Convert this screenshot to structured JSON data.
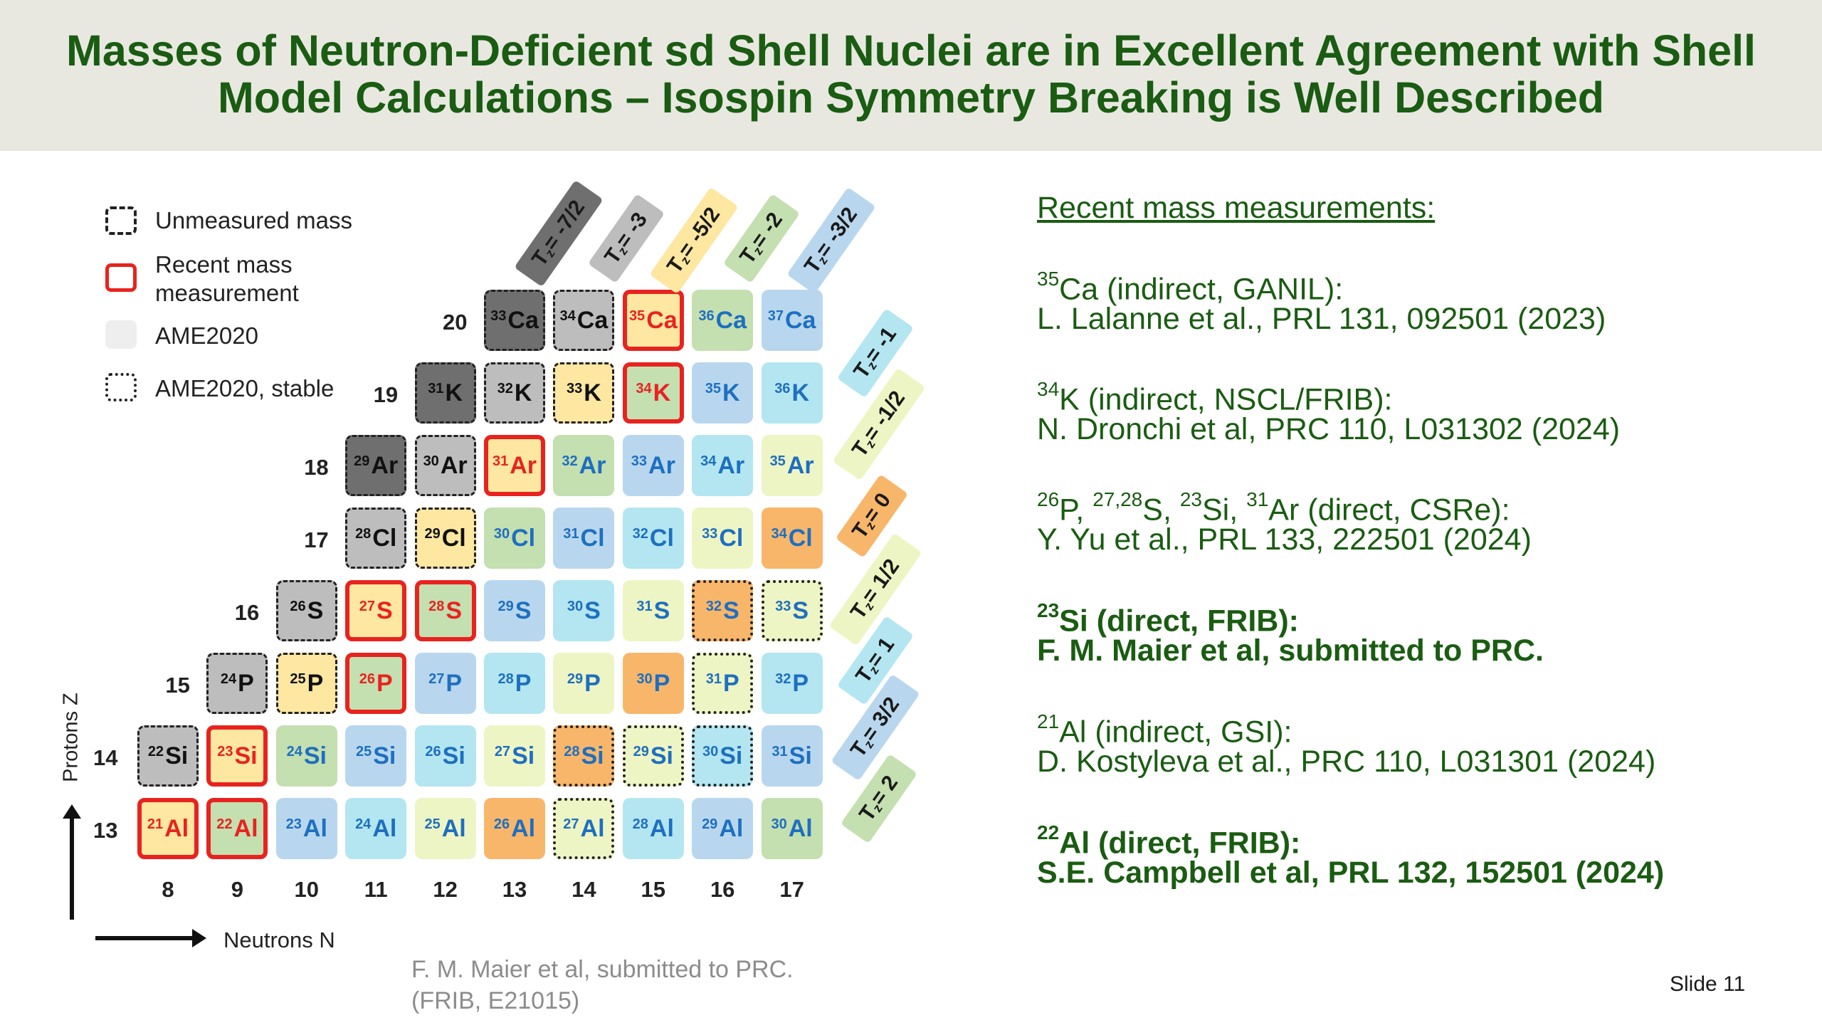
{
  "title_lines": [
    "Masses of Neutron-Deficient sd Shell Nuclei are in Excellent Agreement with Shell",
    "Model Calculations – Isospin Symmetry Breaking is Well Described"
  ],
  "legend": [
    {
      "label": "Unmeasured mass"
    },
    {
      "label": "Recent mass measurement"
    },
    {
      "label": "AME2020"
    },
    {
      "label": "AME2020, stable"
    }
  ],
  "axes": {
    "y_label": "Protons Z",
    "x_label": "Neutrons N"
  },
  "z_values": [
    "20",
    "19",
    "18",
    "17",
    "16",
    "15",
    "14",
    "13"
  ],
  "n_values": [
    "8",
    "9",
    "10",
    "11",
    "12",
    "13",
    "14",
    "15",
    "16",
    "17"
  ],
  "tz_top": [
    "T_z = -7/2",
    "T_z = -3",
    "T_z = -5/2",
    "T_z = -2",
    "T_z = -3/2"
  ],
  "tz_right": [
    "T_z = -1",
    "T_z = -1/2",
    "T_z = 0",
    "T_z = 1/2",
    "T_z = 1",
    "T_z = 3/2",
    "T_z = 2"
  ],
  "colors": {
    "title_green": "#1a5c12",
    "dark_gray": "#6f6f6f",
    "light_gray": "#bdbdbd",
    "yellow": "#fde7a1",
    "green": "#c4dfb0",
    "blue": "#b8d7ee",
    "cyan": "#b3e6f0",
    "lime": "#eef5c4",
    "orange": "#f8b66a",
    "measured_red": "#e8231f"
  },
  "cells": [
    {
      "a": "33",
      "el": "Ca",
      "z": 20,
      "n": 13,
      "fill": "#6f6f6f",
      "style": "dashed",
      "text": "#111111"
    },
    {
      "a": "34",
      "el": "Ca",
      "z": 20,
      "n": 14,
      "fill": "#bdbdbd",
      "style": "dashed",
      "text": "#111111"
    },
    {
      "a": "35",
      "el": "Ca",
      "z": 20,
      "n": 15,
      "fill": "#fde7a1",
      "style": "red",
      "text": "#e8231f"
    },
    {
      "a": "36",
      "el": "Ca",
      "z": 20,
      "n": 16,
      "fill": "#c4dfb0",
      "style": "none",
      "text": "#1e6fc0"
    },
    {
      "a": "37",
      "el": "Ca",
      "z": 20,
      "n": 17,
      "fill": "#b8d7ee",
      "style": "none",
      "text": "#1e6fc0"
    },
    {
      "a": "31",
      "el": "K",
      "z": 19,
      "n": 12,
      "fill": "#6f6f6f",
      "style": "dashed",
      "text": "#111111"
    },
    {
      "a": "32",
      "el": "K",
      "z": 19,
      "n": 13,
      "fill": "#bdbdbd",
      "style": "dashed",
      "text": "#111111"
    },
    {
      "a": "33",
      "el": "K",
      "z": 19,
      "n": 14,
      "fill": "#fde7a1",
      "style": "dashed",
      "text": "#111111"
    },
    {
      "a": "34",
      "el": "K",
      "z": 19,
      "n": 15,
      "fill": "#c4dfb0",
      "style": "red",
      "text": "#e8231f"
    },
    {
      "a": "35",
      "el": "K",
      "z": 19,
      "n": 16,
      "fill": "#b8d7ee",
      "style": "none",
      "text": "#1e6fc0"
    },
    {
      "a": "36",
      "el": "K",
      "z": 19,
      "n": 17,
      "fill": "#b3e6f0",
      "style": "none",
      "text": "#1e6fc0"
    },
    {
      "a": "29",
      "el": "Ar",
      "z": 18,
      "n": 11,
      "fill": "#6f6f6f",
      "style": "dashed",
      "text": "#111111"
    },
    {
      "a": "30",
      "el": "Ar",
      "z": 18,
      "n": 12,
      "fill": "#bdbdbd",
      "style": "dashed",
      "text": "#111111"
    },
    {
      "a": "31",
      "el": "Ar",
      "z": 18,
      "n": 13,
      "fill": "#fde7a1",
      "style": "red",
      "text": "#e8231f"
    },
    {
      "a": "32",
      "el": "Ar",
      "z": 18,
      "n": 14,
      "fill": "#c4dfb0",
      "style": "none",
      "text": "#1e6fc0"
    },
    {
      "a": "33",
      "el": "Ar",
      "z": 18,
      "n": 15,
      "fill": "#b8d7ee",
      "style": "none",
      "text": "#1e6fc0"
    },
    {
      "a": "34",
      "el": "Ar",
      "z": 18,
      "n": 16,
      "fill": "#b3e6f0",
      "style": "none",
      "text": "#1e6fc0"
    },
    {
      "a": "35",
      "el": "Ar",
      "z": 18,
      "n": 17,
      "fill": "#eef5c4",
      "style": "none",
      "text": "#1e6fc0"
    },
    {
      "a": "28",
      "el": "Cl",
      "z": 17,
      "n": 11,
      "fill": "#bdbdbd",
      "style": "dashed",
      "text": "#111111"
    },
    {
      "a": "29",
      "el": "Cl",
      "z": 17,
      "n": 12,
      "fill": "#fde7a1",
      "style": "dashed",
      "text": "#111111"
    },
    {
      "a": "30",
      "el": "Cl",
      "z": 17,
      "n": 13,
      "fill": "#c4dfb0",
      "style": "none",
      "text": "#1e6fc0"
    },
    {
      "a": "31",
      "el": "Cl",
      "z": 17,
      "n": 14,
      "fill": "#b8d7ee",
      "style": "none",
      "text": "#1e6fc0"
    },
    {
      "a": "32",
      "el": "Cl",
      "z": 17,
      "n": 15,
      "fill": "#b3e6f0",
      "style": "none",
      "text": "#1e6fc0"
    },
    {
      "a": "33",
      "el": "Cl",
      "z": 17,
      "n": 16,
      "fill": "#eef5c4",
      "style": "none",
      "text": "#1e6fc0"
    },
    {
      "a": "34",
      "el": "Cl",
      "z": 17,
      "n": 17,
      "fill": "#f8b66a",
      "style": "none",
      "text": "#1e6fc0"
    },
    {
      "a": "26",
      "el": "S",
      "z": 16,
      "n": 10,
      "fill": "#bdbdbd",
      "style": "dashed",
      "text": "#111111"
    },
    {
      "a": "27",
      "el": "S",
      "z": 16,
      "n": 11,
      "fill": "#fde7a1",
      "style": "red",
      "text": "#e8231f"
    },
    {
      "a": "28",
      "el": "S",
      "z": 16,
      "n": 12,
      "fill": "#c4dfb0",
      "style": "red",
      "text": "#e8231f"
    },
    {
      "a": "29",
      "el": "S",
      "z": 16,
      "n": 13,
      "fill": "#b8d7ee",
      "style": "none",
      "text": "#1e6fc0"
    },
    {
      "a": "30",
      "el": "S",
      "z": 16,
      "n": 14,
      "fill": "#b3e6f0",
      "style": "none",
      "text": "#1e6fc0"
    },
    {
      "a": "31",
      "el": "S",
      "z": 16,
      "n": 15,
      "fill": "#eef5c4",
      "style": "none",
      "text": "#1e6fc0"
    },
    {
      "a": "32",
      "el": "S",
      "z": 16,
      "n": 16,
      "fill": "#f8b66a",
      "style": "dotted",
      "text": "#1e6fc0"
    },
    {
      "a": "33",
      "el": "S",
      "z": 16,
      "n": 17,
      "fill": "#eef5c4",
      "style": "dotted",
      "text": "#1e6fc0"
    },
    {
      "a": "24",
      "el": "P",
      "z": 15,
      "n": 9,
      "fill": "#bdbdbd",
      "style": "dashed",
      "text": "#111111"
    },
    {
      "a": "25",
      "el": "P",
      "z": 15,
      "n": 10,
      "fill": "#fde7a1",
      "style": "dashed",
      "text": "#111111"
    },
    {
      "a": "26",
      "el": "P",
      "z": 15,
      "n": 11,
      "fill": "#c4dfb0",
      "style": "red",
      "text": "#e8231f"
    },
    {
      "a": "27",
      "el": "P",
      "z": 15,
      "n": 12,
      "fill": "#b8d7ee",
      "style": "none",
      "text": "#1e6fc0"
    },
    {
      "a": "28",
      "el": "P",
      "z": 15,
      "n": 13,
      "fill": "#b3e6f0",
      "style": "none",
      "text": "#1e6fc0"
    },
    {
      "a": "29",
      "el": "P",
      "z": 15,
      "n": 14,
      "fill": "#eef5c4",
      "style": "none",
      "text": "#1e6fc0"
    },
    {
      "a": "30",
      "el": "P",
      "z": 15,
      "n": 15,
      "fill": "#f8b66a",
      "style": "none",
      "text": "#1e6fc0"
    },
    {
      "a": "31",
      "el": "P",
      "z": 15,
      "n": 16,
      "fill": "#eef5c4",
      "style": "dotted",
      "text": "#1e6fc0"
    },
    {
      "a": "32",
      "el": "P",
      "z": 15,
      "n": 17,
      "fill": "#b3e6f0",
      "style": "none",
      "text": "#1e6fc0"
    },
    {
      "a": "22",
      "el": "Si",
      "z": 14,
      "n": 8,
      "fill": "#bdbdbd",
      "style": "dashed",
      "text": "#111111"
    },
    {
      "a": "23",
      "el": "Si",
      "z": 14,
      "n": 9,
      "fill": "#fde7a1",
      "style": "red",
      "text": "#e8231f"
    },
    {
      "a": "24",
      "el": "Si",
      "z": 14,
      "n": 10,
      "fill": "#c4dfb0",
      "style": "none",
      "text": "#1e6fc0"
    },
    {
      "a": "25",
      "el": "Si",
      "z": 14,
      "n": 11,
      "fill": "#b8d7ee",
      "style": "none",
      "text": "#1e6fc0"
    },
    {
      "a": "26",
      "el": "Si",
      "z": 14,
      "n": 12,
      "fill": "#b3e6f0",
      "style": "none",
      "text": "#1e6fc0"
    },
    {
      "a": "27",
      "el": "Si",
      "z": 14,
      "n": 13,
      "fill": "#eef5c4",
      "style": "none",
      "text": "#1e6fc0"
    },
    {
      "a": "28",
      "el": "Si",
      "z": 14,
      "n": 14,
      "fill": "#f8b66a",
      "style": "dotted",
      "text": "#1e6fc0"
    },
    {
      "a": "29",
      "el": "Si",
      "z": 14,
      "n": 15,
      "fill": "#eef5c4",
      "style": "dotted",
      "text": "#1e6fc0"
    },
    {
      "a": "30",
      "el": "Si",
      "z": 14,
      "n": 16,
      "fill": "#b3e6f0",
      "style": "dotted",
      "text": "#1e6fc0"
    },
    {
      "a": "31",
      "el": "Si",
      "z": 14,
      "n": 17,
      "fill": "#b8d7ee",
      "style": "none",
      "text": "#1e6fc0"
    },
    {
      "a": "21",
      "el": "Al",
      "z": 13,
      "n": 8,
      "fill": "#fde7a1",
      "style": "red",
      "text": "#e8231f"
    },
    {
      "a": "22",
      "el": "Al",
      "z": 13,
      "n": 9,
      "fill": "#c4dfb0",
      "style": "red",
      "text": "#e8231f"
    },
    {
      "a": "23",
      "el": "Al",
      "z": 13,
      "n": 10,
      "fill": "#b8d7ee",
      "style": "none",
      "text": "#1e6fc0"
    },
    {
      "a": "24",
      "el": "Al",
      "z": 13,
      "n": 11,
      "fill": "#b3e6f0",
      "style": "none",
      "text": "#1e6fc0"
    },
    {
      "a": "25",
      "el": "Al",
      "z": 13,
      "n": 12,
      "fill": "#eef5c4",
      "style": "none",
      "text": "#1e6fc0"
    },
    {
      "a": "26",
      "el": "Al",
      "z": 13,
      "n": 13,
      "fill": "#f8b66a",
      "style": "none",
      "text": "#1e6fc0"
    },
    {
      "a": "27",
      "el": "Al",
      "z": 13,
      "n": 14,
      "fill": "#eef5c4",
      "style": "dotted",
      "text": "#1e6fc0"
    },
    {
      "a": "28",
      "el": "Al",
      "z": 13,
      "n": 15,
      "fill": "#b3e6f0",
      "style": "none",
      "text": "#1e6fc0"
    },
    {
      "a": "29",
      "el": "Al",
      "z": 13,
      "n": 16,
      "fill": "#b8d7ee",
      "style": "none",
      "text": "#1e6fc0"
    },
    {
      "a": "30",
      "el": "Al",
      "z": 13,
      "n": 17,
      "fill": "#c4dfb0",
      "style": "none",
      "text": "#1e6fc0"
    }
  ],
  "references": {
    "heading": "Recent mass measurements:",
    "ca35_line1_sup": "35",
    "ca35_line1_rest": "Ca (indirect, GANIL):",
    "ca35_line2": "L. Lalanne et al., PRL 131, 092501 (2023)",
    "k34_line1_sup": "34",
    "k34_line1_rest": "K (indirect, NSCL/FRIB):",
    "k34_line2": "N. Dronchi et al, PRC 110, L031302 (2024)",
    "csre_sup1": "26",
    "csre_txt1": "P, ",
    "csre_sup2": "27,28",
    "csre_txt2": "S, ",
    "csre_sup3": "23",
    "csre_txt3": "Si, ",
    "csre_sup4": "31",
    "csre_txt4": "Ar (direct, CSRe):",
    "csre_line2": "Y. Yu et al., PRL 133, 222501 (2024)",
    "si23_line1_sup": "23",
    "si23_line1_rest": "Si (direct, FRIB):",
    "si23_line2": "F. M. Maier et al, submitted to PRC.",
    "al21_line1_sup": "21",
    "al21_line1_rest": "Al (indirect, GSI):",
    "al21_line2": "D. Kostyleva et al., PRC 110, L031301 (2024)",
    "al22_line1_sup": "22",
    "al22_line1_rest": "Al (direct, FRIB):",
    "al22_line2": "S.E. Campbell et al, PRL 132, 152501 (2024)"
  },
  "footer": {
    "citation_line1": "F. M. Maier et al, submitted to PRC.",
    "citation_line2": "(FRIB, E21015)",
    "slide_number": "Slide 11"
  }
}
